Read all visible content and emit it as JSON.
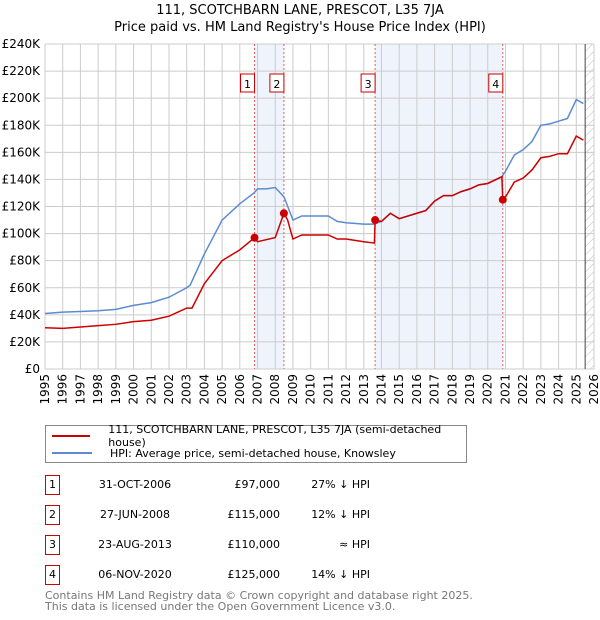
{
  "chart_data": {
    "type": "line",
    "title": "111, SCOTCHBARN LANE, PRESCOT, L35 7JA",
    "subtitle": "Price paid vs. HM Land Registry's House Price Index (HPI)",
    "xlim": [
      1995,
      2026
    ],
    "ylim": [
      0,
      240000
    ],
    "yticks": [
      0,
      20000,
      40000,
      60000,
      80000,
      100000,
      120000,
      140000,
      160000,
      180000,
      200000,
      220000,
      240000
    ],
    "ytick_labels": [
      "£0",
      "£20K",
      "£40K",
      "£60K",
      "£80K",
      "£100K",
      "£120K",
      "£140K",
      "£160K",
      "£180K",
      "£200K",
      "£220K",
      "£240K"
    ],
    "xtick_labels": [
      "1995",
      "1996",
      "1997",
      "1998",
      "1999",
      "2000",
      "2001",
      "2002",
      "2003",
      "2004",
      "2005",
      "2006",
      "2007",
      "2008",
      "2009",
      "2010",
      "2011",
      "2012",
      "2013",
      "2014",
      "2015",
      "2016",
      "2017",
      "2018",
      "2019",
      "2020",
      "2021",
      "2022",
      "2023",
      "2024",
      "2025",
      "2026"
    ],
    "grid": true,
    "colors": {
      "property": "#cc0000",
      "hpi": "#5b8bd0",
      "shade": "#eef3fc",
      "marker_line": "#e06060"
    },
    "series": [
      {
        "name": "111, SCOTCHBARN LANE, PRESCOT, L35 7JA (semi-detached house)",
        "key": "property",
        "x": [
          1995,
          1996,
          1997,
          1998,
          1999,
          2000,
          2001,
          2002,
          2003,
          2003.3,
          2004,
          2005,
          2006,
          2006.83,
          2007,
          2008,
          2008.49,
          2008.7,
          2009,
          2009.5,
          2010,
          2011,
          2011.5,
          2012,
          2013,
          2013.6,
          2013.64,
          2014,
          2014.5,
          2015,
          2016,
          2016.5,
          2017,
          2017.5,
          2018,
          2018.5,
          2019,
          2019.5,
          2020,
          2020.8,
          2020.85,
          2021,
          2021.5,
          2022,
          2022.5,
          2023,
          2023.5,
          2024,
          2024.5,
          2025,
          2025.4
        ],
        "y": [
          30500,
          30000,
          31000,
          32000,
          33000,
          35000,
          36000,
          39000,
          45000,
          45000,
          63000,
          80000,
          88000,
          97000,
          94000,
          97000,
          115000,
          110000,
          96000,
          99000,
          99000,
          99000,
          96000,
          96000,
          94000,
          93000,
          110000,
          109000,
          115000,
          111000,
          115000,
          117000,
          124000,
          128000,
          128000,
          131000,
          133000,
          136000,
          137000,
          142000,
          125000,
          127000,
          138000,
          141000,
          147000,
          156000,
          157000,
          159000,
          159000,
          172000,
          169000
        ]
      },
      {
        "name": "HPI: Average price, semi-detached house, Knowsley",
        "key": "hpi",
        "x": [
          1995,
          1996,
          1997,
          1998,
          1999,
          2000,
          2001,
          2002,
          2003,
          2003.2,
          2004,
          2005,
          2006,
          2006.8,
          2007,
          2007.5,
          2008,
          2008.5,
          2009,
          2009.5,
          2010,
          2011,
          2011.5,
          2012,
          2013,
          2013.6,
          2014,
          2014.5,
          2015,
          2016,
          2016.5,
          2017,
          2017.5,
          2018,
          2018.5,
          2019,
          2019.5,
          2020,
          2020.8,
          2021,
          2021.5,
          2022,
          2022.5,
          2023,
          2023.5,
          2024,
          2024.5,
          2025,
          2025.4
        ],
        "y": [
          41000,
          42000,
          42500,
          43000,
          44000,
          47000,
          49000,
          53000,
          60000,
          62000,
          85000,
          110000,
          122000,
          130000,
          133000,
          133000,
          134000,
          127000,
          110000,
          113000,
          113000,
          113000,
          109000,
          108000,
          107000,
          107000,
          109000,
          115000,
          111000,
          115000,
          117000,
          124000,
          128000,
          128000,
          131000,
          133000,
          136000,
          137000,
          142000,
          146000,
          158000,
          162000,
          168000,
          180000,
          181000,
          183000,
          185000,
          199000,
          196000
        ]
      }
    ],
    "sales": [
      {
        "id": "1",
        "x": 2006.83,
        "y": 97000
      },
      {
        "id": "2",
        "x": 2008.49,
        "y": 115000
      },
      {
        "id": "3",
        "x": 2013.64,
        "y": 110000
      },
      {
        "id": "4",
        "x": 2020.85,
        "y": 125000
      }
    ],
    "forecast_from": 2025.5
  },
  "table": [
    {
      "id": "1",
      "date": "31-OCT-2006",
      "price": "£97,000",
      "hpi": "27% ↓ HPI"
    },
    {
      "id": "2",
      "date": "27-JUN-2008",
      "price": "£115,000",
      "hpi": "12% ↓ HPI"
    },
    {
      "id": "3",
      "date": "23-AUG-2013",
      "price": "£110,000",
      "hpi": "≈ HPI"
    },
    {
      "id": "4",
      "date": "06-NOV-2020",
      "price": "£125,000",
      "hpi": "14% ↓ HPI"
    }
  ],
  "footer": {
    "line1": "Contains HM Land Registry data © Crown copyright and database right 2025.",
    "line2": "This data is licensed under the Open Government Licence v3.0."
  }
}
